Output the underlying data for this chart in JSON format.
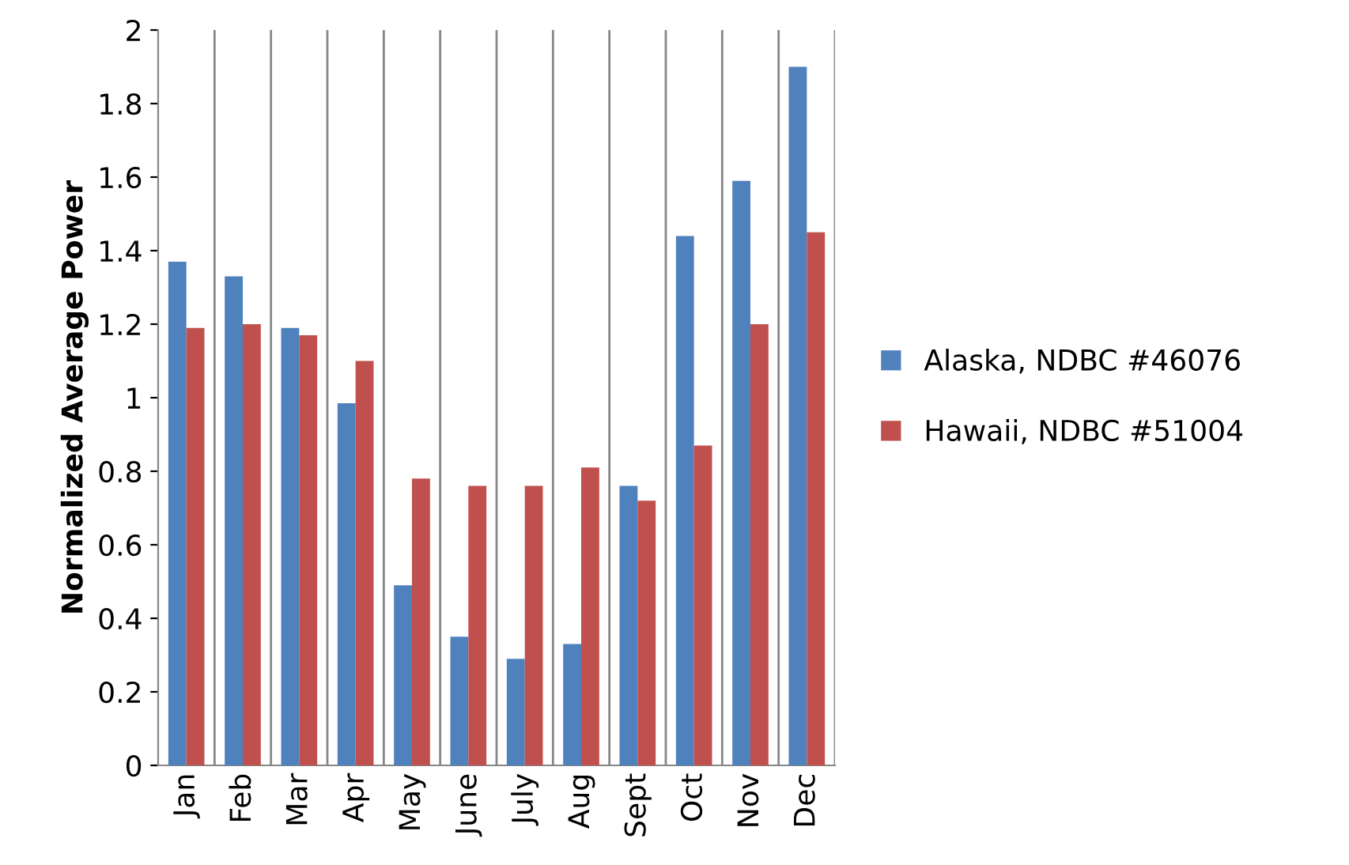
{
  "chart_data": {
    "type": "bar",
    "ylabel": "Normalized Average Power",
    "categories": [
      "Jan",
      "Feb",
      "Mar",
      "Apr",
      "May",
      "June",
      "July",
      "Aug",
      "Sept",
      "Oct",
      "Nov",
      "Dec"
    ],
    "series": [
      {
        "name": "Alaska, NDBC #46076",
        "color": "#4f81bd",
        "values": [
          1.37,
          1.33,
          1.19,
          0.985,
          0.49,
          0.35,
          0.29,
          0.33,
          0.76,
          1.44,
          1.59,
          1.9
        ]
      },
      {
        "name": "Hawaii, NDBC #51004",
        "color": "#c0504d",
        "values": [
          1.19,
          1.2,
          1.17,
          1.1,
          0.78,
          0.76,
          0.76,
          0.81,
          0.72,
          0.87,
          1.2,
          1.45
        ]
      }
    ],
    "ylim": [
      0,
      2
    ],
    "yticks": [
      0,
      0.2,
      0.4,
      0.6,
      0.8,
      1,
      1.2,
      1.4,
      1.6,
      1.8,
      2
    ],
    "grid": "x",
    "legend": "right"
  }
}
